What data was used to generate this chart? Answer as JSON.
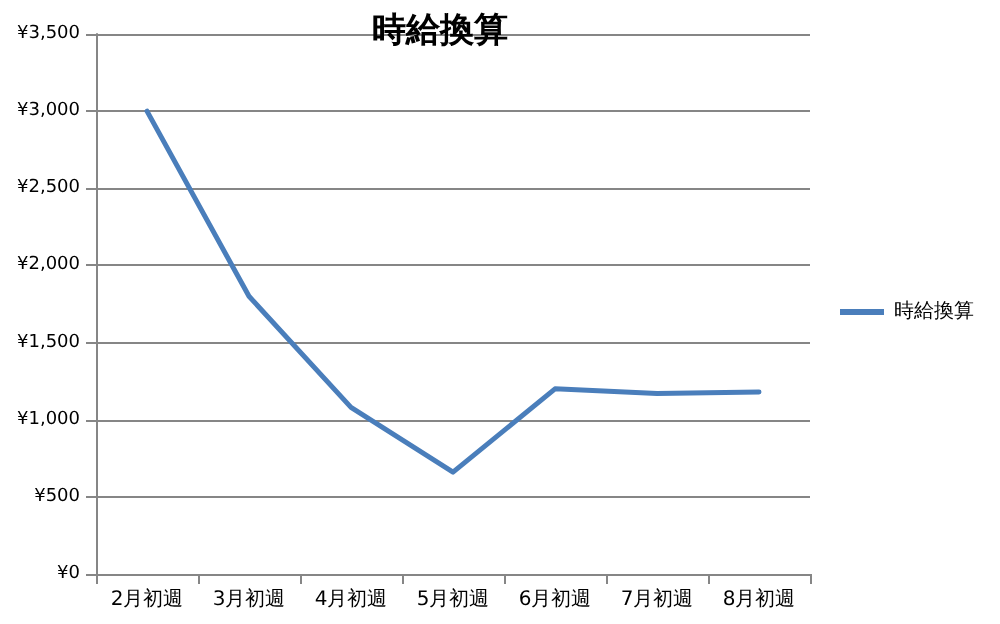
{
  "chart_data": {
    "type": "line",
    "title": "時給換算",
    "categories": [
      "2月初週",
      "3月初週",
      "4月初週",
      "5月初週",
      "6月初週",
      "7月初週",
      "8月初週"
    ],
    "series": [
      {
        "name": "時給換算",
        "color": "#4a7ebb",
        "values": [
          3000,
          1800,
          1080,
          660,
          1200,
          1170,
          1180
        ]
      }
    ],
    "ylim": [
      0,
      3500
    ],
    "yticks": [
      {
        "value": 0,
        "label": "¥0"
      },
      {
        "value": 500,
        "label": "¥500"
      },
      {
        "value": 1000,
        "label": "¥1,000"
      },
      {
        "value": 1500,
        "label": "¥1,500"
      },
      {
        "value": 2000,
        "label": "¥2,000"
      },
      {
        "value": 2500,
        "label": "¥2,500"
      },
      {
        "value": 3000,
        "label": "¥3,000"
      },
      {
        "value": 3500,
        "label": "¥3,500"
      }
    ],
    "grid": "y",
    "legend": "right",
    "marker": "none",
    "line_style": "solid"
  }
}
